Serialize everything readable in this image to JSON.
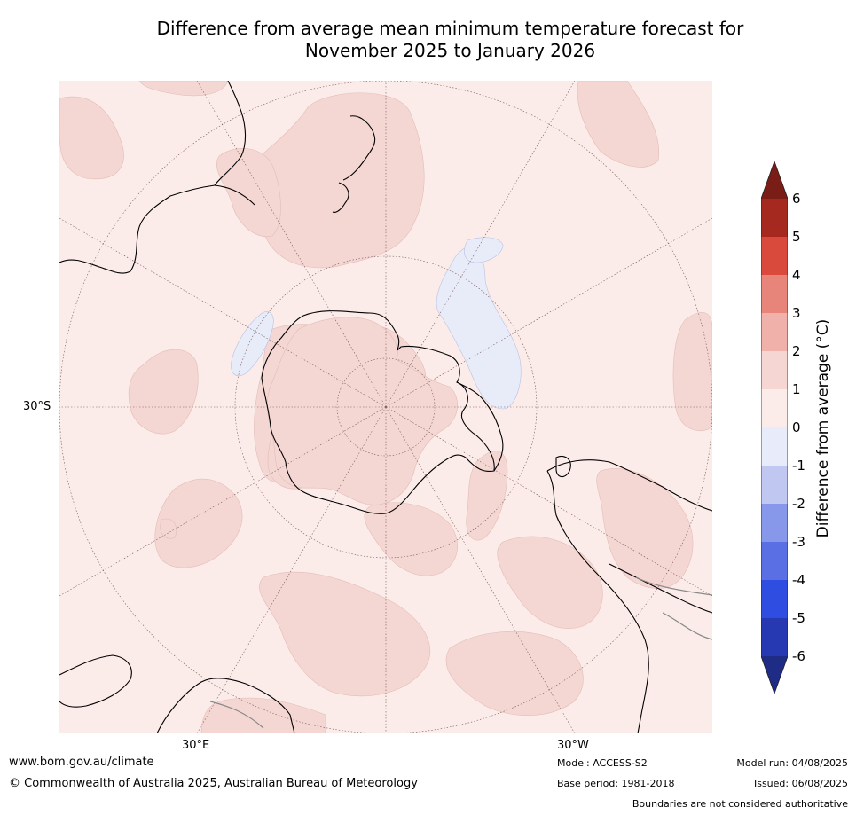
{
  "title": {
    "line1": "Difference from average mean minimum temperature forecast for",
    "line2": "November 2025 to January 2026"
  },
  "map": {
    "projection": "south polar stereographic",
    "latitude_label": "30°S",
    "longitude_labels": {
      "east": "30°E",
      "west": "30°W"
    },
    "colors": {
      "ocean_background": "#fbece9",
      "warm_0_1": "#fbece9",
      "warm_1_2": "#f4d6d3",
      "cool_minus1_0": "#e8ecf9",
      "coastline": "#000000",
      "graticule": "#7a5a5a"
    },
    "features": [
      "Antarctica",
      "South America",
      "Africa",
      "Australia",
      "New Zealand",
      "Madagascar"
    ]
  },
  "colorbar": {
    "label": "Difference from average (°C)",
    "ticks": [
      "6",
      "5",
      "4",
      "3",
      "2",
      "1",
      "0",
      "-1",
      "-2",
      "-3",
      "-4",
      "-5",
      "-6"
    ],
    "colors": [
      "#a5291f",
      "#d94a3c",
      "#e8857b",
      "#efb1aa",
      "#f5d6d2",
      "#fbece9",
      "#e8ebf9",
      "#c0c8f2",
      "#8797ea",
      "#5a6fe3",
      "#2f4de0",
      "#2638b2"
    ],
    "over_color": "#7a1d16",
    "under_color": "#1e2c85"
  },
  "footer": {
    "website": "www.bom.gov.au/climate",
    "copyright": "© Commonwealth of Australia 2025, Australian Bureau of Meteorology",
    "model": "Model: ACCESS-S2",
    "base_period": "Base period: 1981-2018",
    "model_run": "Model run: 04/08/2025",
    "issued": "Issued: 06/08/2025",
    "disclaimer": "Boundaries are not considered authoritative"
  }
}
